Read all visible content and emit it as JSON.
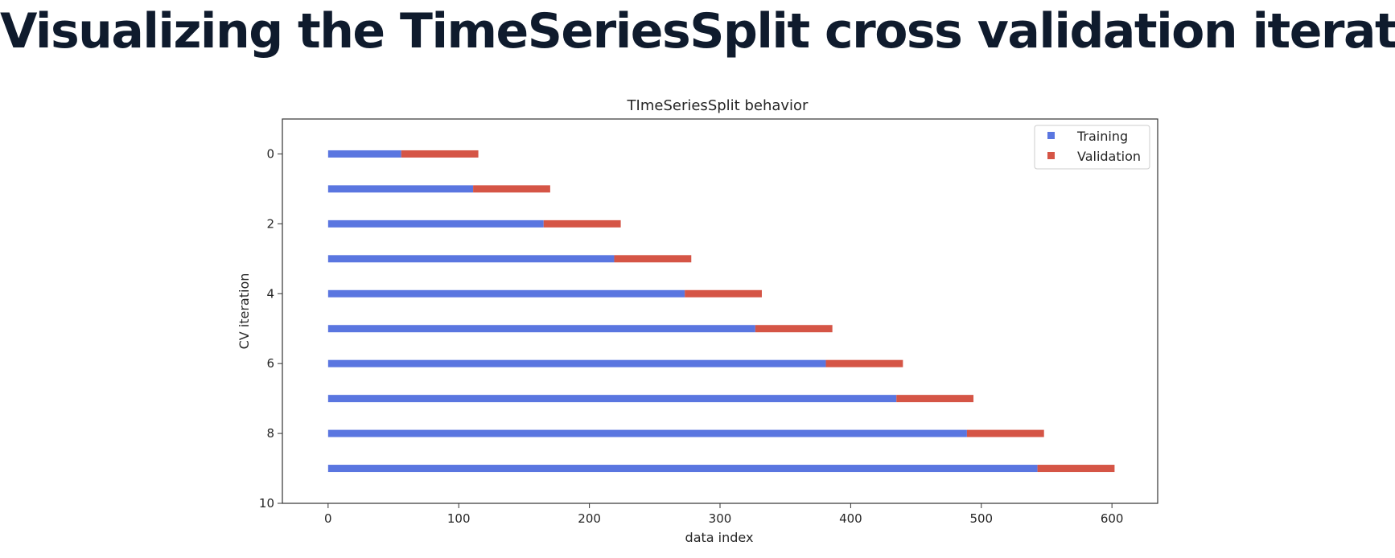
{
  "slide": {
    "title": "Visualizing the TimeSeriesSplit cross validation iterator"
  },
  "chart_data": {
    "type": "bar",
    "orientation": "horizontal",
    "title": "TImeSeriesSplit behavior",
    "xlabel": "data index",
    "ylabel": "CV iteration",
    "xlim": [
      -35,
      635
    ],
    "ylim": [
      10,
      -1
    ],
    "y_inverted": true,
    "xticks": [
      0,
      100,
      200,
      300,
      400,
      500,
      600
    ],
    "yticks": [
      0,
      2,
      4,
      6,
      8,
      10
    ],
    "grid": false,
    "legend_position": "top-right",
    "series": [
      {
        "name": "Training",
        "color": "#5a76e0"
      },
      {
        "name": "Validation",
        "color": "#d55546"
      }
    ],
    "iterations": [
      {
        "iteration": 0,
        "train": [
          0,
          56
        ],
        "val": [
          56,
          115
        ]
      },
      {
        "iteration": 1,
        "train": [
          0,
          111
        ],
        "val": [
          111,
          170
        ]
      },
      {
        "iteration": 2,
        "train": [
          0,
          165
        ],
        "val": [
          165,
          224
        ]
      },
      {
        "iteration": 3,
        "train": [
          0,
          219
        ],
        "val": [
          219,
          278
        ]
      },
      {
        "iteration": 4,
        "train": [
          0,
          273
        ],
        "val": [
          273,
          332
        ]
      },
      {
        "iteration": 5,
        "train": [
          0,
          327
        ],
        "val": [
          327,
          386
        ]
      },
      {
        "iteration": 6,
        "train": [
          0,
          381
        ],
        "val": [
          381,
          440
        ]
      },
      {
        "iteration": 7,
        "train": [
          0,
          435
        ],
        "val": [
          435,
          494
        ]
      },
      {
        "iteration": 8,
        "train": [
          0,
          489
        ],
        "val": [
          489,
          548
        ]
      },
      {
        "iteration": 9,
        "train": [
          0,
          543
        ],
        "val": [
          543,
          602
        ]
      }
    ]
  }
}
